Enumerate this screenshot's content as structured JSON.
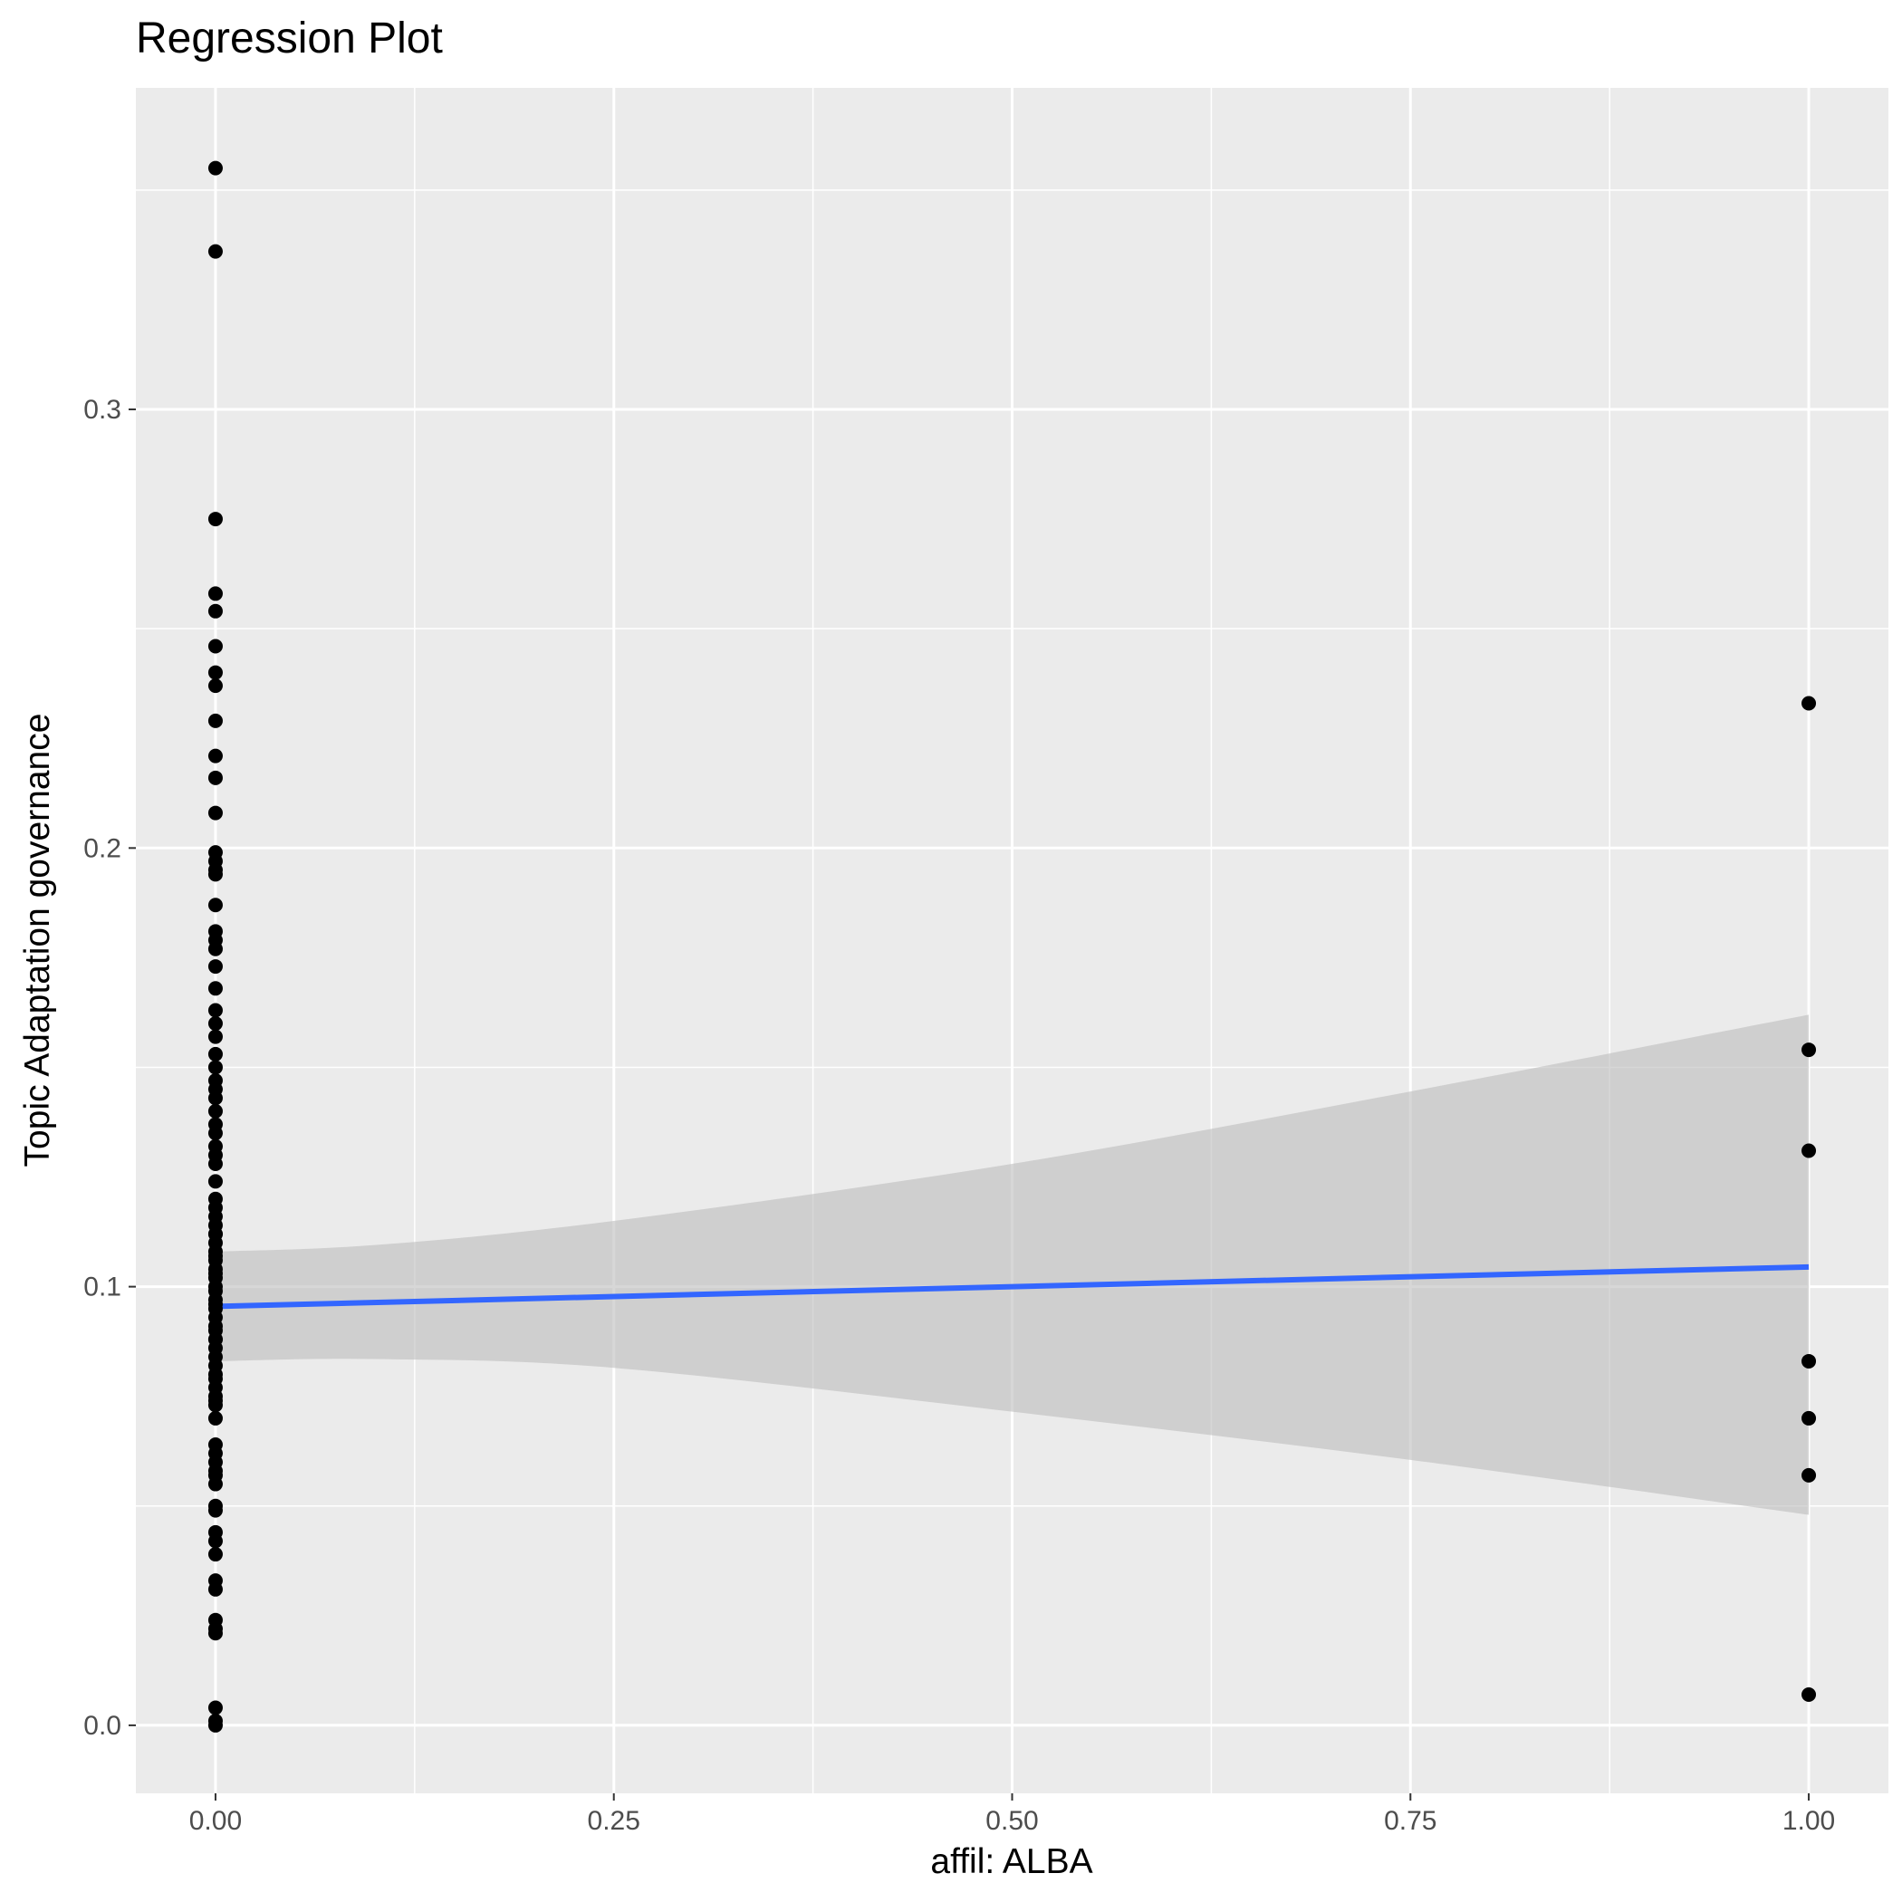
{
  "chart_data": {
    "type": "scatter",
    "title": "Regression Plot",
    "xlabel": "affil: ALBA",
    "ylabel": "Topic Adaptation governance",
    "xlim": [
      -0.05,
      1.05
    ],
    "ylim": [
      -0.0155,
      0.3733
    ],
    "x_ticks": [
      0.0,
      0.25,
      0.5,
      0.75,
      1.0
    ],
    "x_tick_labels": [
      "0.00",
      "0.25",
      "0.50",
      "0.75",
      "1.00"
    ],
    "y_ticks": [
      0.0,
      0.1,
      0.2,
      0.3
    ],
    "y_tick_labels": [
      "0.0",
      "0.1",
      "0.2",
      "0.3"
    ],
    "grid": true,
    "colors": {
      "panel_background": "#ebebeb",
      "grid": "#ffffff",
      "points": "#000000",
      "fit_line": "#3366ff",
      "confidence_band": "#bdbdbd"
    },
    "series": [
      {
        "type": "scatter",
        "x": [
          0,
          0,
          0,
          0,
          0,
          0,
          0,
          0,
          0,
          0,
          0,
          0,
          0,
          0,
          0,
          0,
          0,
          0,
          0,
          0,
          0,
          0,
          0,
          0,
          0,
          0,
          0,
          0,
          0,
          0,
          0,
          0,
          0,
          0,
          0,
          0,
          0,
          0,
          0,
          0,
          0,
          0,
          0,
          0,
          0,
          0,
          0,
          0,
          0,
          0,
          0,
          0,
          0,
          0,
          0,
          0,
          0,
          0,
          0,
          0,
          0,
          0,
          0,
          0,
          0,
          0,
          0,
          0,
          0,
          0,
          0,
          0,
          0,
          0,
          0,
          0,
          0,
          0,
          0,
          0,
          0,
          0,
          0,
          0,
          0,
          0,
          0,
          0,
          0,
          1,
          1,
          1,
          1,
          1,
          1,
          1
        ],
        "y": [
          0.355,
          0.336,
          0.275,
          0.258,
          0.254,
          0.246,
          0.24,
          0.237,
          0.229,
          0.221,
          0.216,
          0.208,
          0.199,
          0.197,
          0.195,
          0.194,
          0.187,
          0.181,
          0.179,
          0.177,
          0.173,
          0.168,
          0.163,
          0.16,
          0.157,
          0.153,
          0.15,
          0.147,
          0.145,
          0.143,
          0.14,
          0.137,
          0.135,
          0.132,
          0.13,
          0.128,
          0.124,
          0.12,
          0.118,
          0.116,
          0.114,
          0.112,
          0.11,
          0.108,
          0.106,
          0.104,
          0.102,
          0.1,
          0.099,
          0.097,
          0.095,
          0.093,
          0.091,
          0.09,
          0.088,
          0.086,
          0.084,
          0.082,
          0.079,
          0.077,
          0.075,
          0.073,
          0.064,
          0.062,
          0.06,
          0.058,
          0.057,
          0.055,
          0.05,
          0.049,
          0.044,
          0.042,
          0.039,
          0.033,
          0.031,
          0.024,
          0.022,
          0.021,
          0.004,
          0.001,
          0.0,
          0.112,
          0.107,
          0.103,
          0.096,
          0.088,
          0.08,
          0.074,
          0.07,
          0.233,
          0.154,
          0.131,
          0.083,
          0.07,
          0.057,
          0.007
        ]
      },
      {
        "type": "line",
        "x": [
          0,
          1
        ],
        "y": [
          0.0955,
          0.1045
        ]
      },
      {
        "type": "area",
        "x": [
          0,
          0.1,
          0.25,
          0.5,
          0.75,
          1.0
        ],
        "y_lower": [
          0.083,
          0.0835,
          0.0815,
          0.0715,
          0.0605,
          0.048
        ],
        "y_upper": [
          0.108,
          0.1095,
          0.115,
          0.128,
          0.1445,
          0.162
        ]
      }
    ]
  }
}
